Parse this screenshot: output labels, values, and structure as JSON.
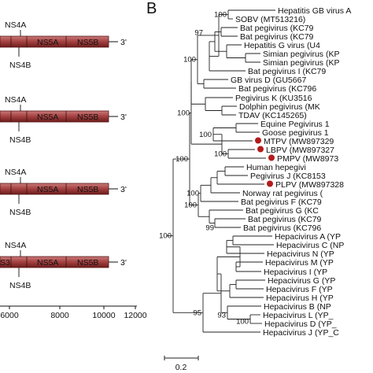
{
  "panel_b_label": "B",
  "genomes": [
    {
      "upper": "NS4A",
      "lower": "NS4B",
      "segs": [
        "",
        "NS5A",
        "NS5B"
      ],
      "end": "3'"
    },
    {
      "upper": "NS4A",
      "lower": "NS4B",
      "segs": [
        "",
        "NS5A",
        "NS5B"
      ],
      "end": "3'"
    },
    {
      "upper": "NS4A",
      "lower": "NS4B",
      "segs": [
        "",
        "NS5A",
        "NS5B"
      ],
      "end": "3'"
    },
    {
      "upper": "NS4A",
      "lower": "NS4B",
      "segs": [
        "S3",
        "NS5A",
        "NS5B"
      ],
      "end": "3'"
    }
  ],
  "genome_axis": {
    "ticks": [
      "6000",
      "8000",
      "10000",
      "12000"
    ]
  },
  "tree": {
    "taxa": [
      "Hepatitis GB virus A",
      "SOBV (MT513216)",
      "Bat pegivirus (KC79",
      "Bat pegivirus (KC79",
      "Hepatitis G virus (U4",
      "Simian pegivirus (KP",
      "Simian pegivirus (KP",
      "Bat pegivirus I (KC79",
      "GB virus D (GU5667",
      "Bat pegivirus (KC796",
      "Pegivirus K (KU3516",
      "Dolphin pegivirus (MK",
      "TDAV (KC145265)",
      "Equine Pegivirus 1",
      "Goose pegivirus 1",
      "MTPV (MW897329",
      "LBPV (MW897327",
      "PMPV (MW8973",
      "Human hepegivi",
      "Pegivirus J (KC8153",
      "PLPV (MW897328",
      "Norway rat pegivirus (",
      "Bat pegivirus F (KC79",
      "Bat pegivirus G (KC",
      "Bat pegivirus (KC79",
      "Bat pegivirus (KC796",
      "Hepacivirus A (YP",
      "Hepacivirus C (NP",
      "Hepacivirus N (YP",
      "Hepacivirus M (YP",
      "Hepacivirus I (YP",
      "Hepacivirus G (YP",
      "Hepacivirus F (YP",
      "Hepacivirus H (YP",
      "Hepacivirus B (NP",
      "Hepacivirus L (YP_",
      "Hepacivirus D (YP_",
      "Hepacivirus J (YP_C"
    ],
    "highlighted": [
      "MTPV (MW897329",
      "LBPV (MW897327",
      "PMPV (MW8973",
      "PLPV (MW897328"
    ],
    "bootstrap": [
      "100",
      "100",
      "97",
      "100",
      "100",
      "100",
      "100",
      "100",
      "99",
      "100",
      "95",
      "93",
      "100",
      "100"
    ],
    "scale_label": "0.2",
    "highlight_color": "#b31b1b"
  }
}
